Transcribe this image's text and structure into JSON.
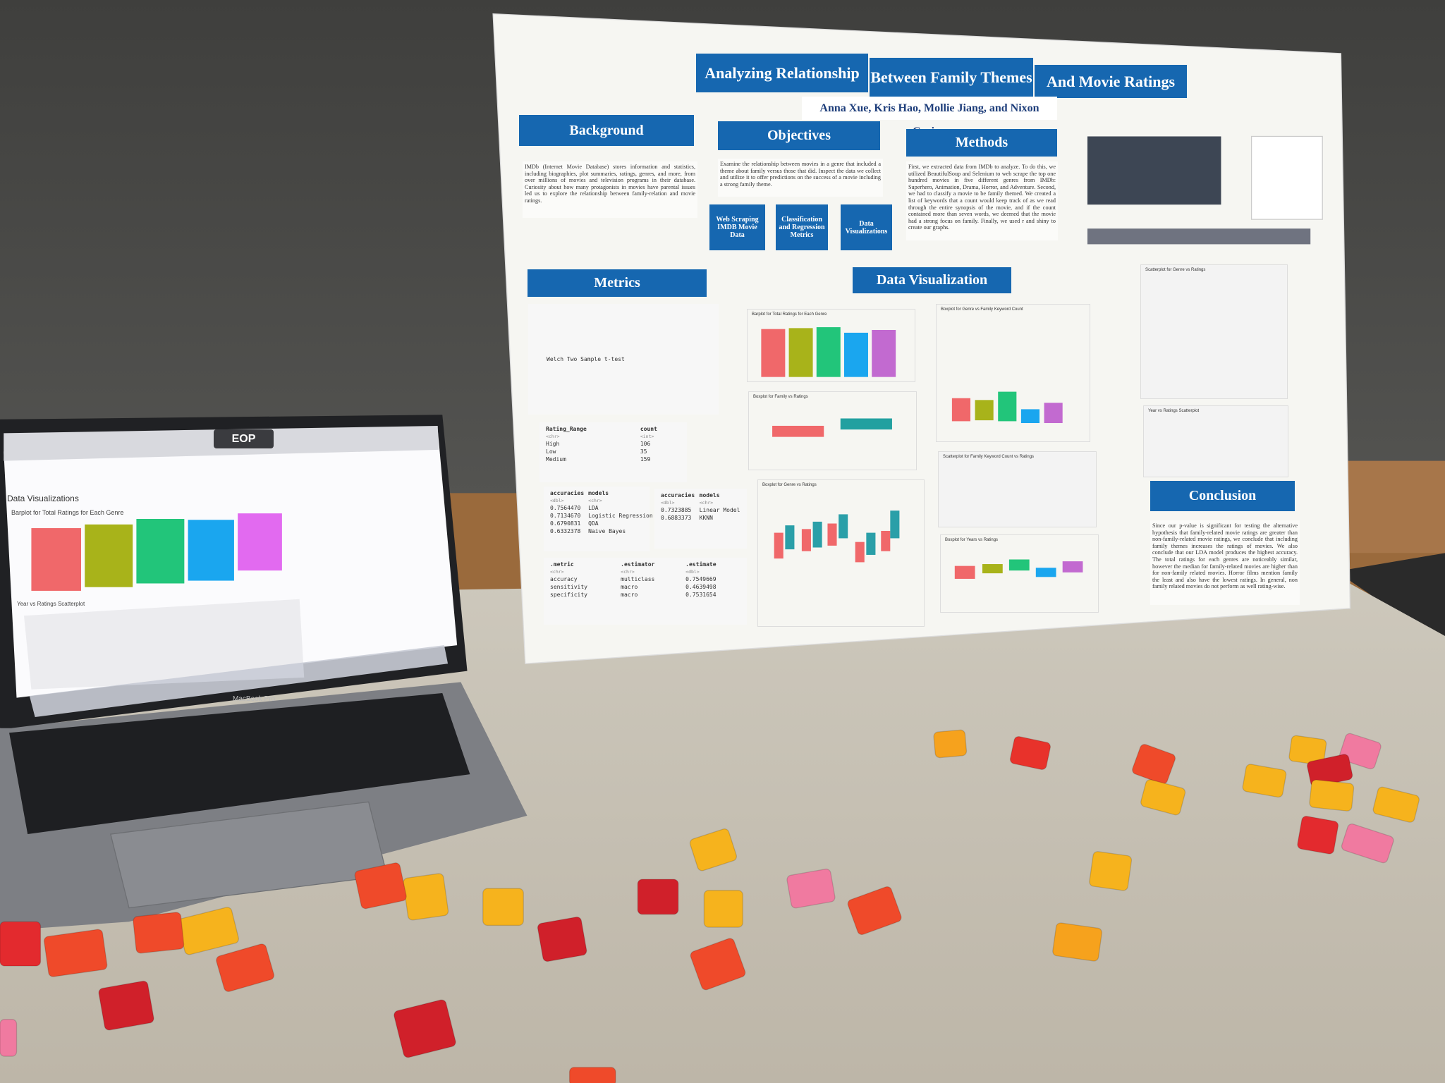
{
  "poster": {
    "title": [
      "Analyzing Relationship",
      "Between Family Themes",
      "And Movie Ratings"
    ],
    "authors": "Anna Xue, Kris Hao, Mollie Jiang, and Nixon Carino",
    "background": {
      "heading": "Background",
      "text": "IMDb (Internet Movie Database) stores information and statistics, including biographies, plot summaries, ratings, genres, and more, from over millions of movies and television programs in their database. Curiosity about how many protagonists in movies have parental issues led us to explore the relationship between family-relation and movie ratings."
    },
    "objectives": {
      "heading": "Objectives",
      "text": "Examine the relationship between movies in a genre that included a theme about family versus those that did. Inspect the data we collect and utilize it to offer predictions on the success of a movie including a strong family theme.",
      "boxes": [
        "Web Scraping IMDB Movie Data",
        "Classification and Regression Metrics",
        "Data Visualizations"
      ]
    },
    "methods": {
      "heading": "Methods",
      "text": "First, we extracted data from IMDb to analyze. To do this, we utilized BeautifulSoup and Selenium to web scrape the top one hundred movies in five different genres from IMDb: Superhero, Animation, Drama, Horror, and Adventure. Second, we had to classify a movie to be family themed. We created a list of keywords that a count would keep track of as we read through the entire synopsis of the movie, and if the count contained more than seven words, we deemed that the movie had a strong focus on family. Finally, we used r and shiny to create our graphs."
    },
    "metrics": {
      "heading": "Metrics",
      "test": "Welch Two Sample t-test",
      "rating_table": {
        "header": [
          "Rating_Range",
          "count"
        ],
        "types": [
          "<chr>",
          "<int>"
        ],
        "rows": [
          [
            "High",
            "106"
          ],
          [
            "Low",
            "35"
          ],
          [
            "Medium",
            "159"
          ]
        ]
      },
      "classification_table": {
        "header": [
          "accuracies",
          "models"
        ],
        "types": [
          "<dbl>",
          "<chr>"
        ],
        "rows": [
          [
            "0.7564470",
            "LDA"
          ],
          [
            "0.7134670",
            "Logistic Regression"
          ],
          [
            "0.6790831",
            "QDA"
          ],
          [
            "0.6332378",
            "Naive Bayes"
          ]
        ]
      },
      "regression_table": {
        "header": [
          "accuracies",
          "models"
        ],
        "types": [
          "<dbl>",
          "<chr>"
        ],
        "rows": [
          [
            "0.7323885",
            "Linear Model"
          ],
          [
            "0.6883373",
            "KKNN"
          ]
        ]
      },
      "lda_table": {
        "header": [
          ".metric",
          ".estimator",
          ".estimate"
        ],
        "types": [
          "<chr>",
          "<chr>",
          "<dbl>"
        ],
        "rows": [
          [
            "accuracy",
            "multiclass",
            "0.7549669"
          ],
          [
            "sensitivity",
            "macro",
            "0.4639498"
          ],
          [
            "specificity",
            "macro",
            "0.7531654"
          ]
        ]
      }
    },
    "data_visualization": {
      "heading": "Data Visualization",
      "plots": [
        "Barplot for Total Ratings for Each Genre",
        "Boxplot for Family vs Ratings",
        "Boxplot for Genre vs Ratings",
        "Boxplot for Genre vs Family Keyword Count",
        "Scatterplot for Family Keyword Count vs Ratings",
        "Boxplot for Years vs Ratings",
        "Scatterplot for Genre vs Ratings",
        "Year vs Ratings Scatterplot"
      ]
    },
    "conclusion": {
      "heading": "Conclusion",
      "text": "Since our p-value is significant for testing the alternative hypothesis that family-related movie ratings are greater than non-family-related movie ratings, we conclude that including family themes increases the ratings of movies. We also conclude that our LDA model produces the highest accuracy. The total ratings for each genres are noticeably similar, however the median for family-related movies are higher than for non-family related movies. Horror films mention family the least and also have the lowest ratings. In general, non family related movies do not perform as well rating-wise."
    }
  },
  "laptop": {
    "sticker": "EOP",
    "model": "MacBook Pro",
    "page_title": "Data Visualizations",
    "chart_title": "Barplot for Total Ratings for Each Genre",
    "scatter_title": "Year vs Ratings Scatterplot"
  }
}
